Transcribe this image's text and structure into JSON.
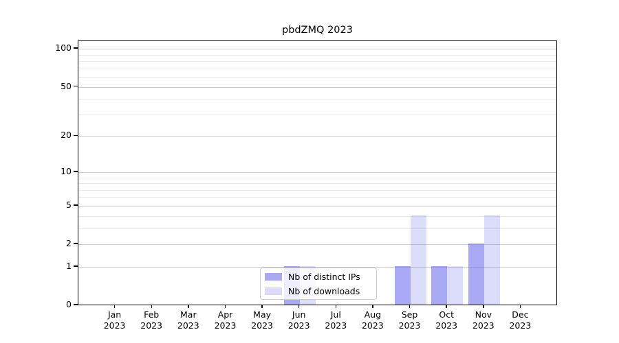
{
  "figure_title": "pbdZMQ 2023",
  "chart_data": {
    "type": "bar",
    "title": "pbdZMQ 2023",
    "categories": [
      "Jan",
      "Feb",
      "Mar",
      "Apr",
      "May",
      "Jun",
      "Jul",
      "Aug",
      "Sep",
      "Oct",
      "Nov",
      "Dec"
    ],
    "x_year_label": "2023",
    "yscale": "log1p",
    "ylim": [
      0,
      116
    ],
    "yticks_major": [
      0,
      1,
      2,
      5,
      10,
      20,
      50,
      100
    ],
    "yticks_minor": [
      3,
      4,
      6,
      7,
      8,
      9,
      30,
      40,
      60,
      70,
      80,
      90
    ],
    "grid": "horizontal",
    "legend_position": "bottom-center-inside",
    "series": [
      {
        "name": "Nb of distinct IPs",
        "swatch_color": "#a9a9ee",
        "fill_color": "rgba(90,90,235,0.52)",
        "values": [
          0,
          0,
          0,
          0,
          0,
          1,
          0,
          0,
          1,
          1,
          2,
          0
        ]
      },
      {
        "name": "Nb of downloads",
        "swatch_color": "#dcdcf9",
        "fill_color": "rgba(90,90,235,0.21)",
        "values": [
          0,
          0,
          0,
          0,
          0,
          1,
          0,
          0,
          4,
          1,
          4,
          0
        ]
      }
    ]
  },
  "colors": {
    "background": "#ffffff",
    "axis": "#000000",
    "grid_major": "#c9c9c9",
    "grid_minor": "#e8e8e8",
    "legend_border": "#cccccc",
    "text": "#000000"
  }
}
